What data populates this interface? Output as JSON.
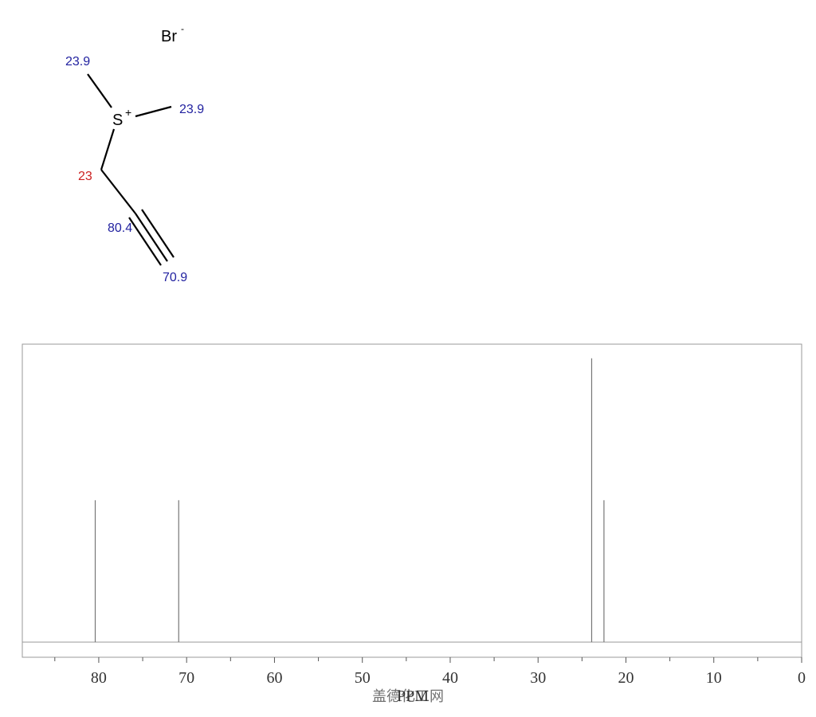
{
  "structure": {
    "ion": {
      "symbol": "Br",
      "charge": "-"
    },
    "center": {
      "symbol": "S",
      "charge": "+"
    },
    "shifts": [
      {
        "text": "23.9",
        "color": "#2222a0"
      },
      {
        "text": "23.9",
        "color": "#2222a0"
      },
      {
        "text": "23",
        "color": "#cc2222"
      },
      {
        "text": "80.4",
        "color": "#2222a0"
      },
      {
        "text": "70.9",
        "color": "#2222a0"
      }
    ]
  },
  "chart_data": {
    "type": "stick",
    "x_label": "PPM",
    "watermark": "盖德化工网",
    "x": [
      80.4,
      70.9,
      23.9,
      22.5
    ],
    "values": [
      1,
      1,
      2,
      1
    ],
    "color": "#777777",
    "xlim": [
      88.7,
      0
    ],
    "ylim": [
      0,
      2.1
    ],
    "xticks": [
      80,
      70,
      60,
      50,
      40,
      30,
      20,
      10,
      0
    ],
    "minor_xticks": [
      85,
      75,
      65,
      55,
      45,
      35,
      25,
      15,
      5
    ]
  }
}
